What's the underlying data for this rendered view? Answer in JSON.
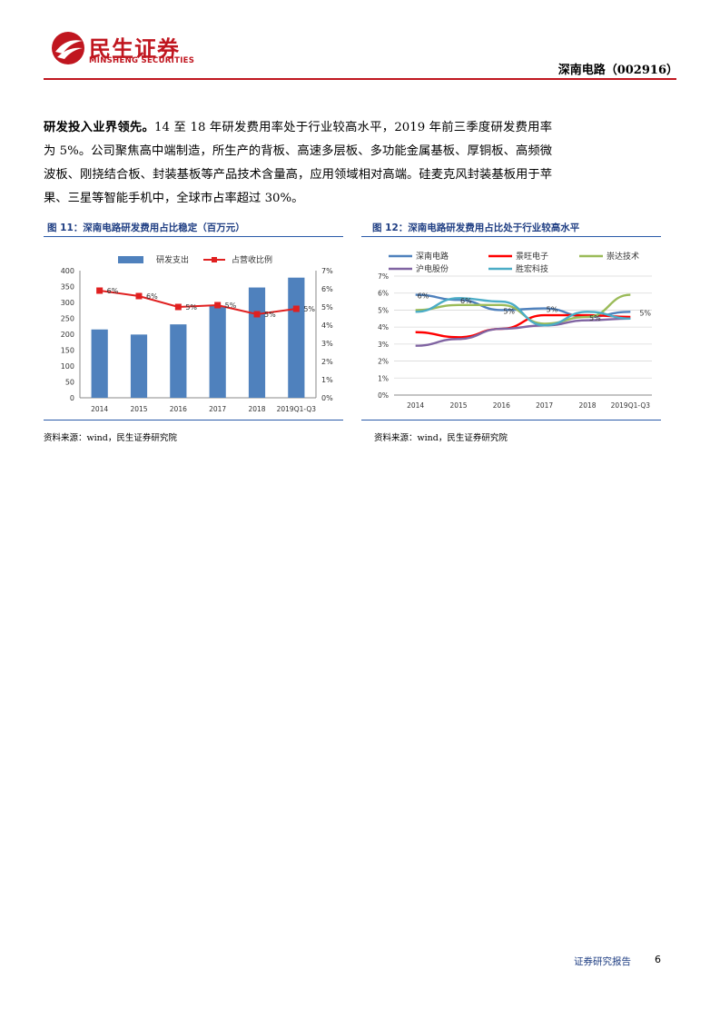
{
  "header": {
    "company_cn": "民生证券",
    "company_en": "MINSHENG SECURITIES",
    "report_title": "深南电路（002916）",
    "brand_color": "#c0161f"
  },
  "paragraph": {
    "lead": "研发投入业界领先。",
    "body": "14 至 18 年研发费用率处于行业较高水平，2019 年前三季度研发费用率为 5%。公司聚焦高中端制造，所生产的背板、高速多层板、多功能金属基板、厚铜板、高频微波板、刚挠结合板、封装基板等产品技术含量高，应用领域相对高端。硅麦克风封装基板用于苹果、三星等智能手机中，全球市占率超过 30%。"
  },
  "figure11": {
    "title": "图 11：深南电路研发费用占比稳定（百万元）",
    "source": "资料来源：wind，民生证券研究院"
  },
  "figure12": {
    "title": "图 12：深南电路研发费用占比处于行业较高水平",
    "source": "资料来源：wind，民生证券研究院"
  },
  "chart_data": [
    {
      "type": "bar",
      "categories": [
        "2014",
        "2015",
        "2016",
        "2017",
        "2018",
        "2019Q1-Q3"
      ],
      "series": [
        {
          "name": "研发支出",
          "type": "bar",
          "axis": "left",
          "color": "#4f81bd",
          "values": [
            215,
            199,
            231,
            290,
            347,
            378
          ]
        },
        {
          "name": "占营收比例",
          "type": "line",
          "axis": "right",
          "color": "#e02020",
          "values": [
            5.9,
            5.6,
            5.0,
            5.1,
            4.6,
            4.9
          ],
          "labels": [
            "6%",
            "6%",
            "5%",
            "5%",
            "5%",
            "5%"
          ]
        }
      ],
      "left_ticks": [
        "0",
        "50",
        "100",
        "150",
        "200",
        "250",
        "300",
        "350",
        "400"
      ],
      "right_ticks": [
        "0%",
        "1%",
        "2%",
        "3%",
        "4%",
        "5%",
        "6%",
        "7%"
      ],
      "ylim_left": [
        0,
        400
      ],
      "ylim_right": [
        0,
        7
      ],
      "legend_position": "top"
    },
    {
      "type": "line",
      "categories": [
        "2014",
        "2015",
        "2016",
        "2017",
        "2018",
        "2019Q1-Q3"
      ],
      "series": [
        {
          "name": "深南电路",
          "color": "#4f81bd",
          "values": [
            5.9,
            5.6,
            5.0,
            5.1,
            4.6,
            4.9
          ]
        },
        {
          "name": "景旺电子",
          "color": "#ff0000",
          "values": [
            3.7,
            3.4,
            3.9,
            4.7,
            4.7,
            4.6
          ]
        },
        {
          "name": "崇达技术",
          "color": "#9bbb59",
          "values": [
            5.0,
            5.3,
            5.3,
            4.2,
            4.6,
            5.9
          ]
        },
        {
          "name": "沪电股份",
          "color": "#8064a2",
          "values": [
            2.9,
            3.3,
            3.9,
            4.1,
            4.4,
            4.5
          ]
        },
        {
          "name": "胜宏科技",
          "color": "#4bacc6",
          "values": [
            4.9,
            5.7,
            5.5,
            4.1,
            4.9,
            4.5
          ]
        }
      ],
      "point_labels": [
        {
          "series": "深南电路",
          "index": 0,
          "text": "6%"
        },
        {
          "series": "深南电路",
          "index": 1,
          "text": "6%"
        },
        {
          "series": "深南电路",
          "index": 2,
          "text": "5%"
        },
        {
          "series": "深南电路",
          "index": 3,
          "text": "5%"
        },
        {
          "series": "深南电路",
          "index": 4,
          "text": "5%"
        },
        {
          "series": "深南电路",
          "index": 5,
          "text": "5%"
        }
      ],
      "y_ticks": [
        "0%",
        "1%",
        "2%",
        "3%",
        "4%",
        "5%",
        "6%",
        "7%"
      ],
      "ylim": [
        0,
        7
      ],
      "grid": true,
      "legend_position": "top"
    }
  ],
  "footer": {
    "label": "证券研究报告",
    "page": "6"
  }
}
